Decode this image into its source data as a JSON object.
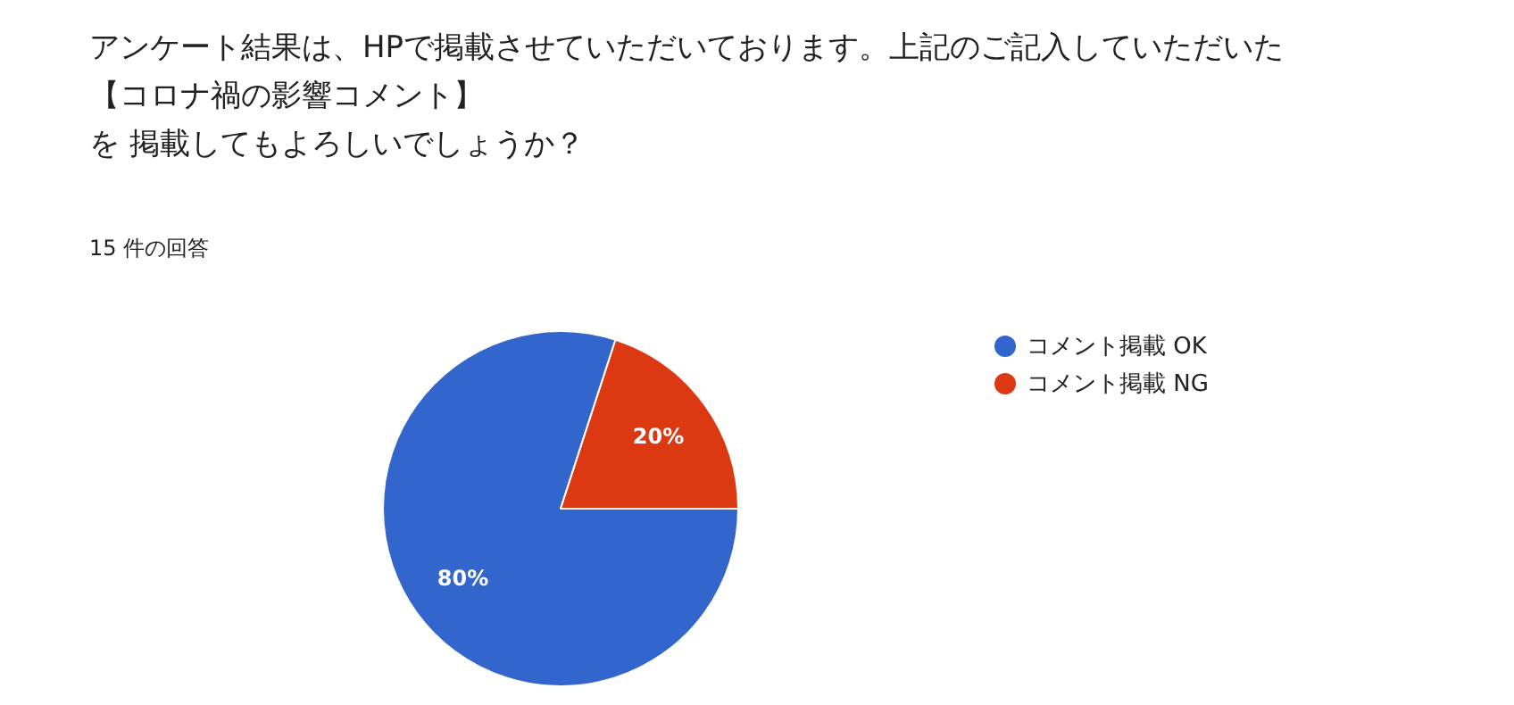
{
  "chart_data": {
    "type": "pie",
    "title": "アンケート結果は、HPで掲載させていただいております。上記のご記入していただいた【コロナ禍の影響コメント】を 掲載してもよろしいでしょうか？",
    "subtitle": "15 件の回答",
    "categories": [
      "コメント掲載 OK",
      "コメント掲載 NG"
    ],
    "values": [
      80,
      20
    ],
    "colors": [
      "#3366cc",
      "#dc3912"
    ],
    "value_labels": [
      "80%",
      "20%"
    ],
    "legend": "right"
  }
}
